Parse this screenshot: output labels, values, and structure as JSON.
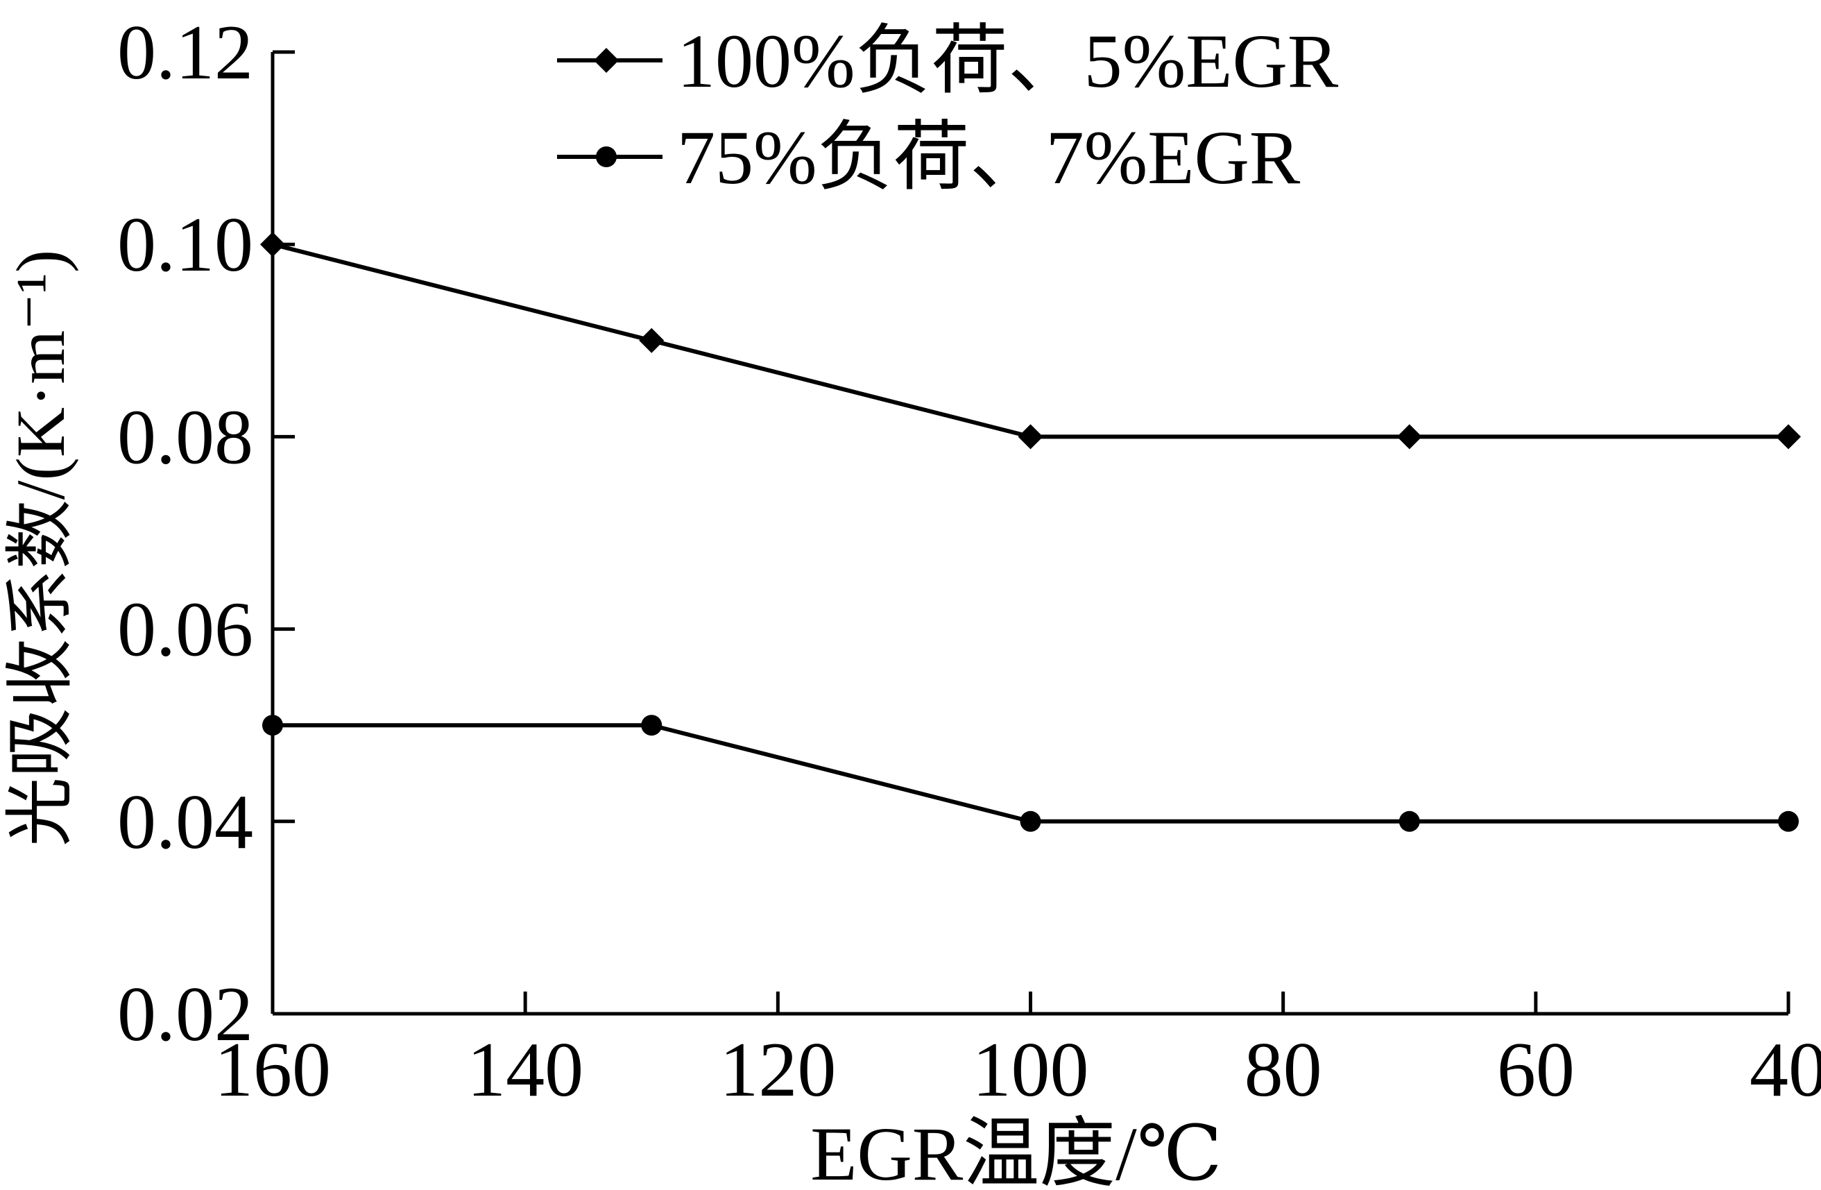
{
  "chart_data": {
    "type": "line",
    "title": "",
    "xlabel": "EGR温度/℃",
    "ylabel": "光吸收系数/(K·m⁻¹)",
    "xlim": [
      160,
      40
    ],
    "x_reversed": true,
    "ylim": [
      0.02,
      0.12
    ],
    "xticks": [
      "160",
      "140",
      "120",
      "100",
      "80",
      "60",
      "40"
    ],
    "xtick_values": [
      160,
      140,
      120,
      100,
      80,
      60,
      40
    ],
    "yticks": [
      "0.02",
      "0.04",
      "0.06",
      "0.08",
      "0.10",
      "0.12"
    ],
    "ytick_values": [
      0.02,
      0.04,
      0.06,
      0.08,
      0.1,
      0.12
    ],
    "grid": false,
    "legend_position": "top",
    "x": [
      160,
      130,
      100,
      70,
      40
    ],
    "series": [
      {
        "name": "100%负荷、5%EGR",
        "marker": "diamond",
        "color": "#000000",
        "values": [
          0.1,
          0.09,
          0.08,
          0.08,
          0.08
        ]
      },
      {
        "name": "75%负荷、7%EGR",
        "marker": "circle",
        "color": "#000000",
        "values": [
          0.05,
          0.05,
          0.04,
          0.04,
          0.04
        ]
      }
    ]
  }
}
